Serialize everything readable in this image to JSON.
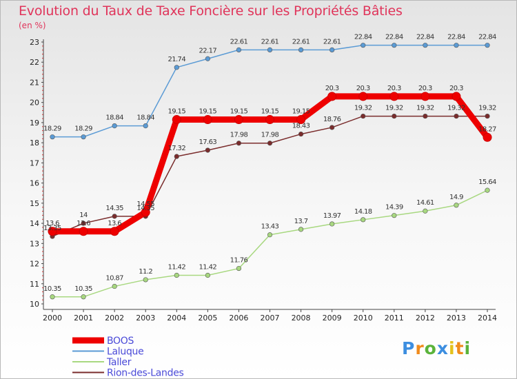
{
  "title": "Evolution du Taux de Taxe Foncière sur les Propriétés Bâties",
  "unit_label": "(en %)",
  "logo": {
    "letters": [
      "P",
      "r",
      "o",
      "x",
      "i",
      "t",
      "i"
    ],
    "colors": [
      "#3c8ee0",
      "#f08b1c",
      "#5ab33a",
      "#3c8ee0",
      "#e4c21c",
      "#f08b1c",
      "#5ab33a"
    ]
  },
  "chart_data": {
    "type": "line",
    "x": [
      "2000",
      "2001",
      "2002",
      "2003",
      "2004",
      "2005",
      "2006",
      "2007",
      "2008",
      "2009",
      "2010",
      "2011",
      "2012",
      "2013",
      "2014"
    ],
    "ylim": [
      10,
      23
    ],
    "yticks": [
      10,
      11,
      12,
      13,
      14,
      15,
      16,
      17,
      18,
      19,
      20,
      21,
      22,
      23
    ],
    "grid": false,
    "legend_position": "bottom-left",
    "series": [
      {
        "name": "BOOS",
        "color": "#ee0000",
        "values": [
          13.6,
          13.6,
          13.6,
          14.55,
          19.15,
          19.15,
          19.15,
          19.15,
          19.15,
          20.3,
          20.3,
          20.3,
          20.3,
          20.3,
          18.27
        ],
        "labels": [
          "13.6",
          "13.6",
          "13.6",
          "14.55",
          "19.15",
          "19.15",
          "19.15",
          "19.15",
          "19.15",
          "20.3",
          "20.3",
          "20.3",
          "20.3",
          "20.3",
          "18.27"
        ]
      },
      {
        "name": "Laluque",
        "color": "#5b9bd5",
        "values": [
          18.29,
          18.29,
          18.84,
          18.84,
          21.74,
          22.17,
          22.61,
          22.61,
          22.61,
          22.61,
          22.84,
          22.84,
          22.84,
          22.84,
          22.84
        ],
        "labels": [
          "18.29",
          "18.29",
          "18.84",
          "18.84",
          "21.74",
          "22.17",
          "22.61",
          "22.61",
          "22.61",
          "22.61",
          "22.84",
          "22.84",
          "22.84",
          "22.84",
          "22.84"
        ]
      },
      {
        "name": "Taller",
        "color": "#a8d880",
        "values": [
          10.35,
          10.35,
          10.87,
          11.2,
          11.42,
          11.42,
          11.76,
          13.43,
          13.7,
          13.97,
          14.18,
          14.39,
          14.61,
          14.9,
          15.64
        ],
        "labels": [
          "10.35",
          "10.35",
          "10.87",
          "11.2",
          "11.42",
          "11.42",
          "11.76",
          "13.43",
          "13.7",
          "13.97",
          "14.18",
          "14.39",
          "14.61",
          "14.9",
          "15.64"
        ]
      },
      {
        "name": "Rion-des-Landes",
        "color": "#7a2c2c",
        "values": [
          13.35,
          14,
          14.35,
          14.35,
          17.32,
          17.63,
          17.98,
          17.98,
          18.43,
          18.76,
          19.32,
          19.32,
          19.32,
          19.32,
          19.32
        ],
        "labels": [
          "13.35",
          "14",
          "14.35",
          "14.35",
          "17.32",
          "17.63",
          "17.98",
          "17.98",
          "18.43",
          "18.76",
          "19.32",
          "19.32",
          "19.32",
          "19.32",
          "19.32"
        ]
      }
    ]
  }
}
